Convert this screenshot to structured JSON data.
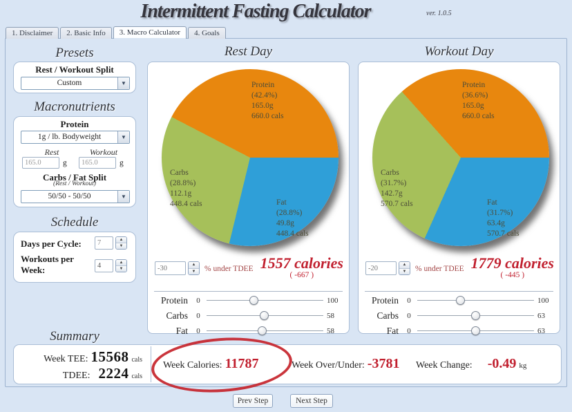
{
  "colors": {
    "protein": "#e8870e",
    "carbs": "#a6c05a",
    "fat": "#2f9fd8",
    "accent_red": "#c1202f",
    "annotation_red": "#c5242b"
  },
  "icons": {
    "dropdown_arrow": "▼",
    "spin_up": "▲",
    "spin_down": "▼"
  },
  "header": {
    "title": "Intermittent Fasting Calculator",
    "version": "ver. 1.0.5"
  },
  "tabs": [
    {
      "label": "1. Disclaimer",
      "active": false
    },
    {
      "label": "2. Basic Info",
      "active": false
    },
    {
      "label": "3. Macro Calculator",
      "active": true
    },
    {
      "label": "4. Goals",
      "active": false
    }
  ],
  "presets": {
    "heading": "Presets",
    "box_title": "Rest / Workout Split",
    "selected": "Custom"
  },
  "macros": {
    "heading": "Macronutrients",
    "protein_title": "Protein",
    "protein_selected": "1g / lb. Bodyweight",
    "rest_label": "Rest",
    "workout_label": "Workout",
    "rest_value": "165.0",
    "workout_value": "165.0",
    "unit": "g",
    "split_title": "Carbs / Fat Split",
    "split_subtitle": "(Rest / Workout)",
    "split_selected": "50/50 - 50/50"
  },
  "schedule": {
    "heading": "Schedule",
    "days_label": "Days per Cycle:",
    "days_value": "7",
    "workouts_label": "Workouts per Week:",
    "workouts_value": "4"
  },
  "days": [
    {
      "adjust": "-30",
      "adjust_label": "% under TDEE",
      "calories": "1557 calories",
      "delta": "( -667 )",
      "sliders": [
        {
          "label": "Protein",
          "min": "0",
          "max": "100",
          "pct": 41
        },
        {
          "label": "Carbs",
          "min": "0",
          "max": "58",
          "pct": 49.5
        },
        {
          "label": "Fat",
          "min": "0",
          "max": "58",
          "pct": 48
        }
      ]
    },
    {
      "adjust": "-20",
      "adjust_label": "% under TDEE",
      "calories": "1779 calories",
      "delta": "( -445 )",
      "sliders": [
        {
          "label": "Protein",
          "min": "0",
          "max": "100",
          "pct": 37
        },
        {
          "label": "Carbs",
          "min": "0",
          "max": "63",
          "pct": 50
        },
        {
          "label": "Fat",
          "min": "0",
          "max": "63",
          "pct": 50
        }
      ]
    }
  ],
  "summary": {
    "heading": "Summary",
    "week_tee_label": "Week TEE:",
    "week_tee_value": "15568",
    "tdee_label": "TDEE:",
    "tdee_value": "2224",
    "cals_unit": "cals",
    "week_calories_label": "Week Calories:",
    "week_calories_value": "11787",
    "over_under_label": "Week Over/Under:",
    "over_under_value": "-3781",
    "change_label": "Week Change:",
    "change_value": "-0.49",
    "change_unit": "kg"
  },
  "buttons": {
    "prev": "Prev Step",
    "next": "Next Step"
  },
  "chart_data": [
    {
      "type": "pie",
      "title": "Rest Day",
      "tdee_adjust_pct": -30,
      "total_calories": 1557,
      "calories_under_tdee": -667,
      "slices": [
        {
          "key": "protein",
          "name": "Protein",
          "pct": 42.4,
          "pct_label": "(42.4%)",
          "grams": "165.0g",
          "cals": "660.0 cals"
        },
        {
          "key": "carbs",
          "name": "Carbs",
          "pct": 28.8,
          "pct_label": "(28.8%)",
          "grams": "112.1g",
          "cals": "448.4 cals"
        },
        {
          "key": "fat",
          "name": "Fat",
          "pct": 28.8,
          "pct_label": "(28.8%)",
          "grams": "49.8g",
          "cals": "448.4 cals"
        }
      ]
    },
    {
      "type": "pie",
      "title": "Workout Day",
      "tdee_adjust_pct": -20,
      "total_calories": 1779,
      "calories_under_tdee": -445,
      "slices": [
        {
          "key": "protein",
          "name": "Protein",
          "pct": 36.6,
          "pct_label": "(36.6%)",
          "grams": "165.0g",
          "cals": "660.0 cals"
        },
        {
          "key": "carbs",
          "name": "Carbs",
          "pct": 31.7,
          "pct_label": "(31.7%)",
          "grams": "142.7g",
          "cals": "570.7 cals"
        },
        {
          "key": "fat",
          "name": "Fat",
          "pct": 31.7,
          "pct_label": "(31.7%)",
          "grams": "63.4g",
          "cals": "570.7 cals"
        }
      ]
    }
  ]
}
